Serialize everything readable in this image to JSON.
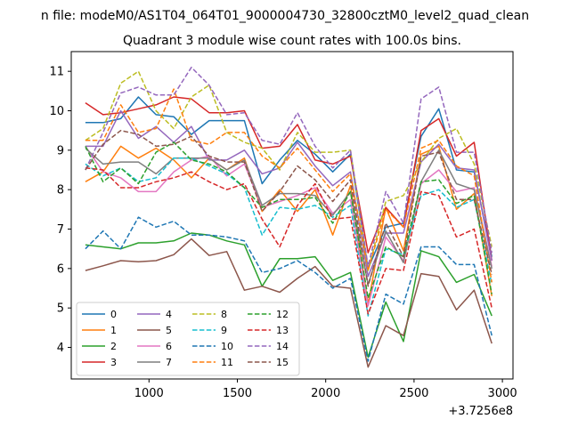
{
  "chart_data": {
    "type": "line",
    "suptitle": "n file: modeM0/AS1T04_064T01_9000004730_32800cztM0_level2_quad_clean",
    "title": "Quadrant 3 module wise count rates with 100.0s bins.",
    "xlabel": "",
    "ylabel": "",
    "x_offset_label": "+3.7256e8",
    "xlim": [
      560,
      3060
    ],
    "ylim": [
      3.2,
      11.5
    ],
    "x_ticks": [
      1000,
      1500,
      2000,
      2500,
      3000
    ],
    "y_ticks": [
      4,
      5,
      6,
      7,
      8,
      9,
      10,
      11
    ],
    "legend_location": "lower-left",
    "x": [
      640,
      740,
      840,
      940,
      1040,
      1140,
      1240,
      1340,
      1440,
      1540,
      1640,
      1740,
      1840,
      1940,
      2040,
      2140,
      2240,
      2340,
      2440,
      2540,
      2640,
      2740,
      2840,
      2940
    ],
    "series": [
      {
        "name": "0",
        "color": "#1f77b4",
        "dash": "solid",
        "values": [
          9.7,
          9.7,
          9.8,
          10.35,
          9.9,
          9.85,
          9.4,
          9.75,
          9.75,
          9.75,
          8.15,
          8.75,
          9.25,
          8.9,
          8.45,
          8.9,
          6.0,
          7.05,
          7.15,
          9.35,
          10.05,
          8.5,
          8.45,
          6.3
        ]
      },
      {
        "name": "1",
        "color": "#ff7f0e",
        "dash": "solid",
        "values": [
          8.2,
          8.45,
          9.1,
          8.8,
          9.05,
          8.75,
          8.3,
          8.8,
          8.5,
          8.8,
          7.45,
          8.0,
          7.45,
          8.0,
          6.85,
          8.1,
          5.1,
          7.55,
          6.45,
          8.9,
          9.1,
          7.5,
          7.9,
          5.3
        ]
      },
      {
        "name": "2",
        "color": "#2ca02c",
        "dash": "solid",
        "values": [
          6.6,
          6.55,
          6.5,
          6.65,
          6.65,
          6.7,
          6.9,
          6.85,
          6.7,
          6.6,
          5.55,
          6.25,
          6.25,
          6.3,
          5.7,
          5.9,
          3.75,
          5.15,
          4.15,
          6.45,
          6.3,
          5.65,
          5.85,
          4.8
        ]
      },
      {
        "name": "3",
        "color": "#d62728",
        "dash": "solid",
        "values": [
          10.2,
          9.9,
          9.95,
          10.05,
          10.15,
          10.35,
          10.3,
          9.95,
          9.95,
          10.0,
          9.05,
          9.1,
          9.65,
          8.75,
          8.65,
          8.85,
          6.4,
          7.55,
          7.05,
          9.5,
          9.8,
          8.85,
          9.2,
          6.2
        ]
      },
      {
        "name": "4",
        "color": "#9467bd",
        "dash": "solid",
        "values": [
          9.1,
          9.1,
          10.0,
          9.3,
          9.6,
          9.2,
          9.6,
          8.75,
          8.75,
          9.0,
          8.4,
          8.55,
          9.2,
          8.6,
          8.1,
          8.45,
          5.8,
          6.9,
          6.9,
          8.7,
          9.15,
          8.55,
          8.5,
          6.2
        ]
      },
      {
        "name": "5",
        "color": "#8c564b",
        "dash": "solid",
        "values": [
          5.95,
          6.07,
          6.2,
          6.17,
          6.2,
          6.35,
          6.75,
          6.33,
          6.43,
          5.45,
          5.55,
          5.4,
          5.75,
          6.05,
          5.55,
          5.5,
          3.5,
          4.55,
          4.3,
          5.87,
          5.8,
          4.95,
          5.45,
          4.1
        ]
      },
      {
        "name": "6",
        "color": "#e377c2",
        "dash": "solid",
        "values": [
          9.1,
          8.45,
          8.3,
          7.95,
          7.95,
          8.45,
          8.75,
          8.85,
          8.35,
          8.65,
          7.55,
          7.7,
          7.85,
          8.05,
          7.4,
          7.75,
          5.05,
          6.8,
          6.2,
          8.15,
          8.5,
          7.95,
          8.05,
          6.05
        ]
      },
      {
        "name": "7",
        "color": "#7f7f7f",
        "dash": "solid",
        "values": [
          9.05,
          8.65,
          8.7,
          8.7,
          8.4,
          8.8,
          8.8,
          8.8,
          8.5,
          8.75,
          7.6,
          7.9,
          7.9,
          7.85,
          7.35,
          7.95,
          5.6,
          6.95,
          6.15,
          8.2,
          9.0,
          8.15,
          8.0,
          6.0
        ]
      },
      {
        "name": "8",
        "color": "#bcbd22",
        "dash": "dashed",
        "values": [
          9.25,
          9.55,
          10.7,
          11.0,
          10.0,
          9.55,
          10.35,
          10.65,
          9.45,
          9.2,
          9.05,
          8.5,
          9.45,
          8.95,
          8.95,
          9.0,
          5.95,
          7.7,
          7.85,
          8.7,
          9.3,
          9.55,
          8.65,
          6.55
        ]
      },
      {
        "name": "9",
        "color": "#17becf",
        "dash": "dashed",
        "values": [
          8.65,
          8.35,
          8.55,
          8.2,
          8.3,
          8.8,
          8.8,
          8.6,
          8.4,
          8.05,
          6.85,
          7.55,
          7.5,
          7.6,
          7.3,
          7.6,
          4.8,
          6.5,
          6.35,
          7.85,
          8.0,
          7.55,
          7.75,
          5.6
        ]
      },
      {
        "name": "10",
        "color": "#1f77b4",
        "dash": "dashed",
        "values": [
          6.5,
          6.95,
          6.5,
          7.3,
          7.05,
          7.2,
          6.85,
          6.85,
          6.8,
          6.7,
          5.9,
          6.0,
          6.2,
          5.9,
          5.5,
          5.75,
          3.65,
          5.35,
          5.1,
          6.55,
          6.55,
          6.1,
          6.1,
          4.3
        ]
      },
      {
        "name": "11",
        "color": "#ff7f0e",
        "dash": "dashed",
        "values": [
          9.25,
          9.25,
          10.15,
          9.45,
          9.55,
          10.55,
          9.25,
          9.15,
          9.45,
          9.45,
          8.85,
          8.55,
          9.05,
          8.5,
          7.95,
          8.4,
          5.95,
          7.5,
          7.05,
          9.05,
          9.25,
          8.6,
          8.35,
          5.65
        ]
      },
      {
        "name": "12",
        "color": "#2ca02c",
        "dash": "dashed",
        "values": [
          9.1,
          8.2,
          8.55,
          8.15,
          8.95,
          9.2,
          8.75,
          8.65,
          8.45,
          8.05,
          7.55,
          7.75,
          7.75,
          7.8,
          7.15,
          7.95,
          5.25,
          6.55,
          6.3,
          8.2,
          8.25,
          7.65,
          7.85,
          5.35
        ]
      },
      {
        "name": "13",
        "color": "#d62728",
        "dash": "dashed",
        "values": [
          8.55,
          8.5,
          8.05,
          8.05,
          8.2,
          8.3,
          8.45,
          8.2,
          8.0,
          8.15,
          7.25,
          6.55,
          7.6,
          8.15,
          7.25,
          7.3,
          4.85,
          6.0,
          5.95,
          7.95,
          7.85,
          6.8,
          7.0,
          5.0
        ]
      },
      {
        "name": "14",
        "color": "#9467bd",
        "dash": "dashed",
        "values": [
          8.5,
          9.45,
          10.45,
          10.6,
          10.4,
          10.4,
          11.1,
          10.65,
          9.9,
          9.95,
          9.25,
          9.15,
          9.95,
          9.1,
          8.55,
          9.0,
          6.05,
          7.95,
          7.15,
          10.3,
          10.6,
          8.95,
          8.95,
          6.4
        ]
      },
      {
        "name": "15",
        "color": "#8c564b",
        "dash": "dashed",
        "values": [
          8.5,
          9.15,
          9.5,
          9.4,
          9.1,
          9.15,
          9.35,
          8.85,
          8.7,
          8.7,
          7.45,
          7.95,
          8.6,
          8.25,
          7.7,
          8.25,
          5.55,
          7.15,
          6.3,
          8.85,
          8.95,
          7.75,
          7.75,
          5.85
        ]
      }
    ]
  }
}
